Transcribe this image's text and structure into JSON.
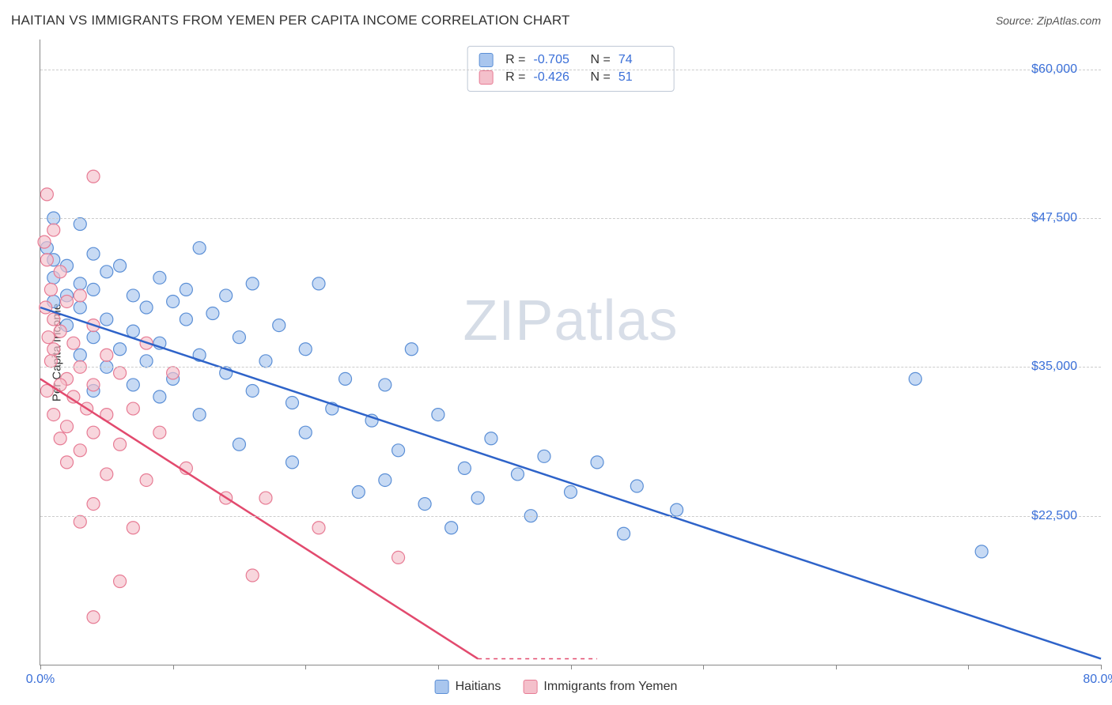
{
  "title": "HAITIAN VS IMMIGRANTS FROM YEMEN PER CAPITA INCOME CORRELATION CHART",
  "source": "Source: ZipAtlas.com",
  "watermark_a": "ZIP",
  "watermark_b": "atlas",
  "y_axis_label": "Per Capita Income",
  "chart": {
    "type": "scatter",
    "xlim": [
      0,
      80
    ],
    "ylim": [
      10000,
      62500
    ],
    "y_ticks": [
      22500,
      35000,
      47500,
      60000
    ],
    "y_tick_labels": [
      "$22,500",
      "$35,000",
      "$47,500",
      "$60,000"
    ],
    "x_tick_positions": [
      0,
      10,
      20,
      30,
      40,
      50,
      60,
      70,
      80
    ],
    "x_left_label": "0.0%",
    "x_right_label": "80.0%",
    "grid_color": "#cccccc",
    "axis_color": "#888888",
    "background": "#ffffff",
    "series": [
      {
        "name": "Haitians",
        "fill": "#a9c6ee",
        "stroke": "#5b8fd6",
        "line_color": "#2e63c9",
        "r_label": "R =",
        "r_value": "-0.705",
        "n_label": "N =",
        "n_value": "74",
        "trend": {
          "x1": 0,
          "y1": 40000,
          "x2": 80,
          "y2": 10500
        },
        "points": [
          [
            1,
            47500
          ],
          [
            3,
            47000
          ],
          [
            0.5,
            45000
          ],
          [
            4,
            44500
          ],
          [
            1,
            44000
          ],
          [
            2,
            43500
          ],
          [
            5,
            43000
          ],
          [
            1,
            42500
          ],
          [
            3,
            42000
          ],
          [
            6,
            43500
          ],
          [
            4,
            41500
          ],
          [
            2,
            41000
          ],
          [
            7,
            41000
          ],
          [
            1,
            40500
          ],
          [
            3,
            40000
          ],
          [
            12,
            45000
          ],
          [
            9,
            42500
          ],
          [
            11,
            41500
          ],
          [
            14,
            41000
          ],
          [
            8,
            40000
          ],
          [
            10,
            40500
          ],
          [
            16,
            42000
          ],
          [
            13,
            39500
          ],
          [
            5,
            39000
          ],
          [
            2,
            38500
          ],
          [
            7,
            38000
          ],
          [
            4,
            37500
          ],
          [
            11,
            39000
          ],
          [
            9,
            37000
          ],
          [
            6,
            36500
          ],
          [
            15,
            37500
          ],
          [
            18,
            38500
          ],
          [
            21,
            42000
          ],
          [
            3,
            36000
          ],
          [
            8,
            35500
          ],
          [
            12,
            36000
          ],
          [
            5,
            35000
          ],
          [
            17,
            35500
          ],
          [
            20,
            36500
          ],
          [
            10,
            34000
          ],
          [
            7,
            33500
          ],
          [
            14,
            34500
          ],
          [
            23,
            34000
          ],
          [
            26,
            33500
          ],
          [
            4,
            33000
          ],
          [
            9,
            32500
          ],
          [
            16,
            33000
          ],
          [
            19,
            32000
          ],
          [
            28,
            36500
          ],
          [
            22,
            31500
          ],
          [
            12,
            31000
          ],
          [
            25,
            30500
          ],
          [
            30,
            31000
          ],
          [
            34,
            29000
          ],
          [
            38,
            27500
          ],
          [
            20,
            29500
          ],
          [
            15,
            28500
          ],
          [
            27,
            28000
          ],
          [
            32,
            26500
          ],
          [
            36,
            26000
          ],
          [
            42,
            27000
          ],
          [
            40,
            24500
          ],
          [
            45,
            25000
          ],
          [
            33,
            24000
          ],
          [
            29,
            23500
          ],
          [
            24,
            24500
          ],
          [
            48,
            23000
          ],
          [
            37,
            22500
          ],
          [
            31,
            21500
          ],
          [
            44,
            21000
          ],
          [
            66,
            34000
          ],
          [
            71,
            19500
          ],
          [
            26,
            25500
          ],
          [
            19,
            27000
          ]
        ]
      },
      {
        "name": "Immigrants from Yemen",
        "fill": "#f4c0cb",
        "stroke": "#e77b94",
        "line_color": "#e24a6e",
        "r_label": "R =",
        "r_value": "-0.426",
        "n_label": "N =",
        "n_value": "51",
        "trend": {
          "x1": 0,
          "y1": 34000,
          "x2": 33,
          "y2": 10500
        },
        "trend_dash_extend": {
          "x1": 33,
          "y1": 10500,
          "x2": 42,
          "y2": 10500
        },
        "points": [
          [
            4,
            51000
          ],
          [
            0.5,
            49500
          ],
          [
            1,
            46500
          ],
          [
            0.3,
            45500
          ],
          [
            0.5,
            44000
          ],
          [
            1.5,
            43000
          ],
          [
            0.8,
            41500
          ],
          [
            2,
            40500
          ],
          [
            0.4,
            40000
          ],
          [
            1,
            39000
          ],
          [
            3,
            41000
          ],
          [
            1.5,
            38000
          ],
          [
            0.6,
            37500
          ],
          [
            2.5,
            37000
          ],
          [
            4,
            38500
          ],
          [
            1,
            36500
          ],
          [
            0.8,
            35500
          ],
          [
            3,
            35000
          ],
          [
            2,
            34000
          ],
          [
            5,
            36000
          ],
          [
            1.5,
            33500
          ],
          [
            0.5,
            33000
          ],
          [
            4,
            33500
          ],
          [
            2.5,
            32500
          ],
          [
            6,
            34500
          ],
          [
            8,
            37000
          ],
          [
            10,
            34500
          ],
          [
            3.5,
            31500
          ],
          [
            1,
            31000
          ],
          [
            5,
            31000
          ],
          [
            2,
            30000
          ],
          [
            7,
            31500
          ],
          [
            4,
            29500
          ],
          [
            1.5,
            29000
          ],
          [
            3,
            28000
          ],
          [
            6,
            28500
          ],
          [
            9,
            29500
          ],
          [
            2,
            27000
          ],
          [
            5,
            26000
          ],
          [
            8,
            25500
          ],
          [
            11,
            26500
          ],
          [
            4,
            23500
          ],
          [
            3,
            22000
          ],
          [
            7,
            21500
          ],
          [
            14,
            24000
          ],
          [
            17,
            24000
          ],
          [
            21,
            21500
          ],
          [
            6,
            17000
          ],
          [
            16,
            17500
          ],
          [
            27,
            19000
          ],
          [
            4,
            14000
          ]
        ]
      }
    ]
  },
  "legend_bottom": [
    {
      "label": "Haitians",
      "fill": "#a9c6ee",
      "stroke": "#5b8fd6"
    },
    {
      "label": "Immigrants from Yemen",
      "fill": "#f4c0cb",
      "stroke": "#e77b94"
    }
  ]
}
